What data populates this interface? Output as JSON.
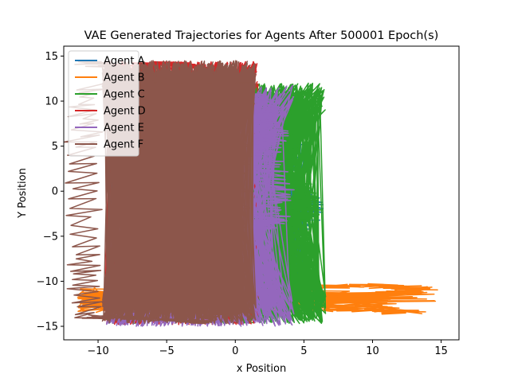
{
  "chart_data": {
    "type": "line",
    "title": "VAE Generated Trajectories for Agents After 500001 Epoch(s)",
    "xlabel": "x Position",
    "ylabel": "Y Position",
    "xlim": [
      -12.5,
      16.3
    ],
    "ylim": [
      -16.5,
      16.1
    ],
    "xticks": [
      -10,
      -5,
      0,
      5,
      10,
      15
    ],
    "yticks": [
      -15,
      -10,
      -5,
      0,
      5,
      10,
      15
    ],
    "xtick_labels": [
      "−10",
      "−5",
      "0",
      "5",
      "10",
      "15"
    ],
    "ytick_labels": [
      "−15",
      "−10",
      "−5",
      "0",
      "5",
      "10",
      "15"
    ],
    "grid": false,
    "legend_position": "top-left",
    "series": [
      {
        "name": "Agent A",
        "color": "#1f77b4",
        "region": {
          "x": [
            -9.4,
            5.0
          ],
          "y": [
            -12.0,
            11.0
          ]
        },
        "outline": [
          [
            1.5,
            10.5
          ],
          [
            3.0,
            10.2
          ],
          [
            4.6,
            8.0
          ],
          [
            5.3,
            5.0
          ],
          [
            5.0,
            2.0
          ],
          [
            6.6,
            -1.8
          ],
          [
            5.8,
            -4.5
          ],
          [
            5.2,
            -7.0
          ],
          [
            3.8,
            -9.0
          ],
          [
            2.5,
            -10.0
          ],
          [
            1.5,
            -10.5
          ]
        ]
      },
      {
        "name": "Agent B",
        "color": "#ff7f0e",
        "region": {
          "x": [
            -11.5,
            15.0
          ],
          "y": [
            -14.8,
            -9.8
          ]
        },
        "outline": [
          [
            1.2,
            -10.6
          ],
          [
            6.0,
            -10.7
          ],
          [
            12.0,
            -10.4
          ],
          [
            15.0,
            -10.9
          ],
          [
            13.0,
            -11.2
          ],
          [
            8.0,
            -11.8
          ],
          [
            14.3,
            -13.5
          ],
          [
            9.0,
            -13.0
          ],
          [
            4.0,
            -12.5
          ],
          [
            1.2,
            -12.6
          ]
        ]
      },
      {
        "name": "Agent C",
        "color": "#2ca02c",
        "region": {
          "x": [
            -9.4,
            6.6
          ],
          "y": [
            -14.7,
            12.0
          ]
        },
        "outline": [
          [
            1.4,
            11.5
          ],
          [
            3.0,
            11.0
          ],
          [
            4.5,
            9.5
          ],
          [
            5.0,
            7.0
          ],
          [
            4.5,
            5.0
          ],
          [
            5.5,
            1.0
          ],
          [
            6.6,
            -2.0
          ],
          [
            5.3,
            -4.0
          ],
          [
            5.0,
            -6.5
          ],
          [
            3.8,
            -8.5
          ],
          [
            2.6,
            -10.3
          ],
          [
            1.8,
            -13.0
          ],
          [
            1.4,
            -14.6
          ]
        ]
      },
      {
        "name": "Agent D",
        "color": "#d62728",
        "region": {
          "x": [
            -9.5,
            1.7
          ],
          "y": [
            -14.8,
            14.4
          ]
        },
        "outline": [
          [
            -5.5,
            14.0
          ],
          [
            -3.0,
            14.2
          ],
          [
            -1.0,
            13.5
          ],
          [
            0.8,
            12.5
          ],
          [
            1.6,
            8.0
          ],
          [
            1.7,
            0.0
          ],
          [
            1.5,
            -8.0
          ],
          [
            1.2,
            -14.0
          ]
        ]
      },
      {
        "name": "Agent E",
        "color": "#9467bd",
        "region": {
          "x": [
            -9.4,
            4.3
          ],
          "y": [
            -15.0,
            11.8
          ]
        },
        "outline": [
          [
            1.5,
            11.0
          ],
          [
            3.5,
            9.8
          ],
          [
            4.0,
            6.5
          ],
          [
            3.5,
            4.0
          ],
          [
            4.3,
            0.0
          ],
          [
            4.0,
            -3.0
          ],
          [
            3.0,
            -4.2
          ],
          [
            1.8,
            -3.5
          ]
        ]
      },
      {
        "name": "Agent F",
        "color": "#8c564b",
        "region": {
          "x": [
            -9.7,
            1.5
          ],
          "y": [
            -14.7,
            14.5
          ]
        },
        "outline": [
          [
            -9.3,
            14.4
          ],
          [
            -6.0,
            13.0
          ],
          [
            -4.0,
            12.2
          ],
          [
            -1.0,
            12.2
          ],
          [
            1.2,
            12.0
          ],
          [
            1.4,
            0.0
          ],
          [
            1.2,
            -12.5
          ],
          [
            -1.0,
            -14.5
          ],
          [
            -6.0,
            -14.0
          ],
          [
            -9.5,
            -14.0
          ],
          [
            -9.7,
            -7.0
          ],
          [
            -9.6,
            5.0
          ],
          [
            -9.4,
            12.0
          ]
        ]
      }
    ]
  }
}
